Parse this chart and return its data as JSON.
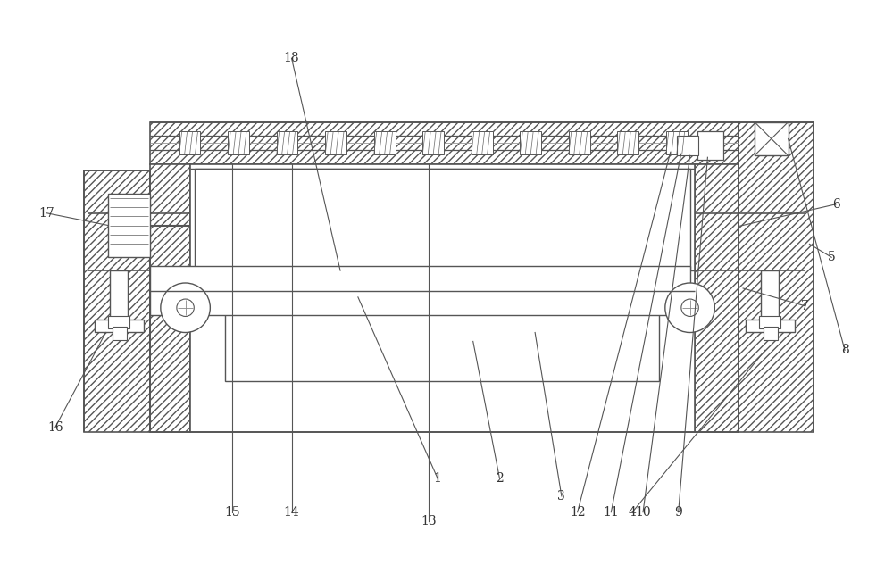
{
  "fig_width": 10.0,
  "fig_height": 6.33,
  "bg_color": "#ffffff",
  "lc": "#555555",
  "lc2": "#333333"
}
